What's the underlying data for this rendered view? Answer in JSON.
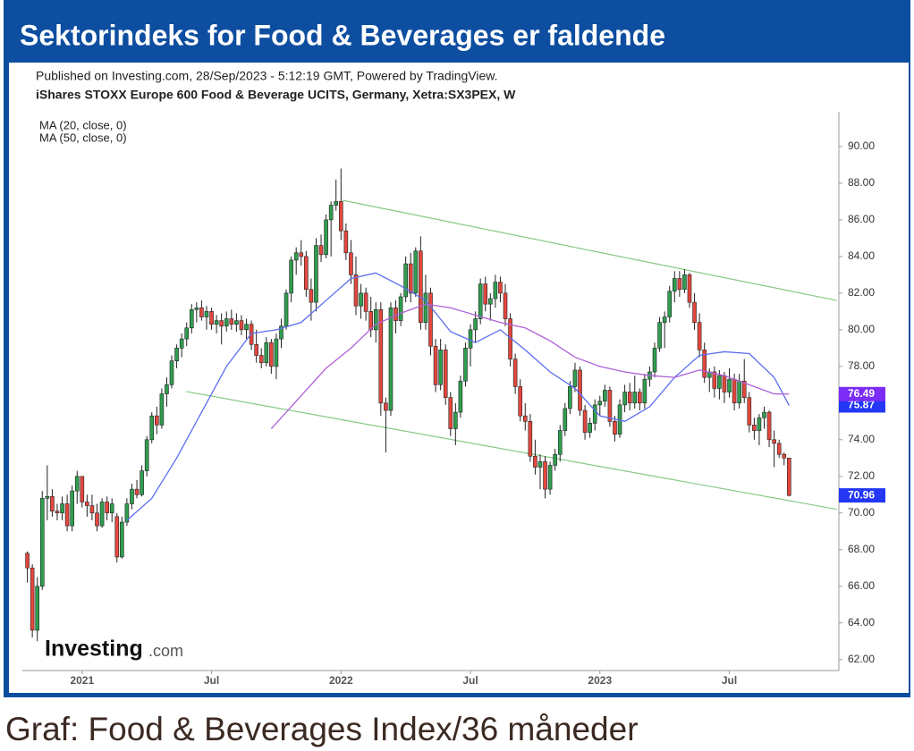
{
  "header": {
    "title": "Sektorindeks for Food & Beverages er faldende"
  },
  "caption": "Graf: Food & Beverages Index/36 måneder",
  "watermark": {
    "brand": "Investing",
    "suffix": ".com"
  },
  "chart_data": {
    "type": "candlestick",
    "subtitle": "Published on Investing.com, 28/Sep/2023 - 5:12:19 GMT, Powered by TradingView.",
    "title": "iShares STOXX Europe 600 Food & Beverage UCITS, Germany, Xetra:SX3PEX, W",
    "x": [
      0,
      1,
      2,
      3,
      4,
      5,
      6,
      7,
      8,
      9,
      10,
      11,
      12,
      13,
      14,
      15,
      16,
      17,
      18,
      19,
      20,
      21,
      22,
      23,
      24,
      25,
      26,
      27,
      28,
      29,
      30,
      31,
      32,
      33,
      34,
      35,
      36,
      37,
      38,
      39,
      40,
      41,
      42,
      43,
      44,
      45,
      46,
      47,
      48,
      49,
      50,
      51,
      52,
      53,
      54,
      55,
      56,
      57,
      58,
      59,
      60,
      61,
      62,
      63,
      64,
      65,
      66,
      67,
      68,
      69,
      70,
      71,
      72,
      73,
      74,
      75,
      76,
      77,
      78,
      79,
      80,
      81,
      82,
      83,
      84,
      85,
      86,
      87,
      88,
      89,
      90,
      91,
      92,
      93,
      94,
      95,
      96,
      97,
      98,
      99,
      100,
      101,
      102,
      103,
      104,
      105,
      106,
      107,
      108,
      109,
      110,
      111,
      112,
      113,
      114,
      115,
      116,
      117,
      118,
      119,
      120,
      121,
      122,
      123,
      124,
      125,
      126,
      127,
      128,
      129,
      130,
      131,
      132,
      133,
      134,
      135,
      136,
      137,
      138,
      139,
      140,
      141,
      142,
      143,
      144,
      145,
      146,
      147,
      148,
      149,
      150,
      151,
      152,
      153
    ],
    "open": [
      67.8,
      67.0,
      63.6,
      66.0,
      70.8,
      70.9,
      70.1,
      70.0,
      70.5,
      69.3,
      71.2,
      72.0,
      70.6,
      70.4,
      70.0,
      69.3,
      70.6,
      70.0,
      69.8,
      67.6,
      69.5,
      70.5,
      71.3,
      71.0,
      72.3,
      74.0,
      75.3,
      74.8,
      76.5,
      77.0,
      78.3,
      79.0,
      79.5,
      80.1,
      81.1,
      81.2,
      80.7,
      81.0,
      80.3,
      80.5,
      80.2,
      80.6,
      80.3,
      80.5,
      80.0,
      80.3,
      79.2,
      78.6,
      78.2,
      79.3,
      78.0,
      79.5,
      80.2,
      82.0,
      83.8,
      84.2,
      84.0,
      82.2,
      81.5,
      84.6,
      84.1,
      86.0,
      86.8,
      87.0,
      85.4,
      84.2,
      83.0,
      81.3,
      82.0,
      81.0,
      80.0,
      81.1,
      76.0,
      75.6,
      81.2,
      80.5,
      81.8,
      83.6,
      82.0,
      84.3,
      80.4,
      82.0,
      79.1,
      77.0,
      78.9,
      76.3,
      74.6,
      75.5,
      77.2,
      79.0,
      80.0,
      80.6,
      82.5,
      81.4,
      81.7,
      82.6,
      82.0,
      80.6,
      78.4,
      76.9,
      75.3,
      75.0,
      73.1,
      72.5,
      72.8,
      71.3,
      72.6,
      73.2,
      74.5,
      75.7,
      76.9,
      77.8,
      75.6,
      74.4,
      74.9,
      75.9,
      76.1,
      76.7,
      75.0,
      74.3,
      75.9,
      76.6,
      76.0,
      76.6,
      76.0,
      77.3,
      77.7,
      79.0,
      80.4,
      80.7,
      82.1,
      82.8,
      82.2,
      83.0,
      81.5,
      80.4,
      78.9,
      77.4,
      77.7,
      76.8,
      77.5,
      76.6,
      77.3,
      76.0,
      77.2,
      76.3,
      74.8,
      74.5,
      75.2,
      75.5,
      74.0,
      73.8,
      73.2,
      73.0
    ],
    "high": [
      67.9,
      67.2,
      66.5,
      71.2,
      72.6,
      71.3,
      70.5,
      70.9,
      71.0,
      71.5,
      72.3,
      72.0,
      71.0,
      71.0,
      70.5,
      70.8,
      70.9,
      70.8,
      70.0,
      69.8,
      70.8,
      71.6,
      71.8,
      72.6,
      74.2,
      75.5,
      75.8,
      76.8,
      77.4,
      78.6,
      79.2,
      79.8,
      80.4,
      81.4,
      81.5,
      81.6,
      81.3,
      81.2,
      80.8,
      80.9,
      81.0,
      81.1,
      80.9,
      80.8,
      80.6,
      80.5,
      80.0,
      79.0,
      79.6,
      79.5,
      79.8,
      80.6,
      82.2,
      84.0,
      84.5,
      84.9,
      84.3,
      82.8,
      85.0,
      85.2,
      86.3,
      87.0,
      88.2,
      88.8,
      85.8,
      84.9,
      84.0,
      82.5,
      82.3,
      81.8,
      81.5,
      81.5,
      76.3,
      81.5,
      81.6,
      82.0,
      84.0,
      84.2,
      84.5,
      85.1,
      83.0,
      82.3,
      79.5,
      79.5,
      79.2,
      76.6,
      76.0,
      77.5,
      79.3,
      80.3,
      81.0,
      82.8,
      82.9,
      82.0,
      83.0,
      82.9,
      82.5,
      80.9,
      78.7,
      77.3,
      76.0,
      75.4,
      74.0,
      73.2,
      73.1,
      72.8,
      73.5,
      74.8,
      76.0,
      77.2,
      78.2,
      78.0,
      75.9,
      75.2,
      76.2,
      76.4,
      77.0,
      76.9,
      75.3,
      76.2,
      77.0,
      77.1,
      77.5,
      76.8,
      77.6,
      78.0,
      79.3,
      80.7,
      81.0,
      82.4,
      83.2,
      83.2,
      83.3,
      83.1,
      82.0,
      80.9,
      79.3,
      77.9,
      78.0,
      77.8,
      77.7,
      77.9,
      77.6,
      77.6,
      78.4,
      76.6,
      75.2,
      75.4,
      75.8,
      75.6,
      74.5,
      74.0,
      73.3,
      73.0
    ],
    "low": [
      66.2,
      63.2,
      63.0,
      65.8,
      69.6,
      69.8,
      69.6,
      69.6,
      69.0,
      69.0,
      70.5,
      70.3,
      69.8,
      69.6,
      69.0,
      69.2,
      69.6,
      69.5,
      67.3,
      67.5,
      69.3,
      70.2,
      70.8,
      70.9,
      72.0,
      73.8,
      74.3,
      74.6,
      75.8,
      76.8,
      77.9,
      78.5,
      79.1,
      79.8,
      80.4,
      80.5,
      80.0,
      80.0,
      79.8,
      79.2,
      79.9,
      80.0,
      79.9,
      79.7,
      79.5,
      78.9,
      78.2,
      77.9,
      78.0,
      77.6,
      77.3,
      79.0,
      80.0,
      81.5,
      83.0,
      83.5,
      81.8,
      80.5,
      81.0,
      83.7,
      83.9,
      84.0,
      86.5,
      84.9,
      83.8,
      82.5,
      80.8,
      80.6,
      80.5,
      79.6,
      79.3,
      75.3,
      73.3,
      75.3,
      79.8,
      80.2,
      81.5,
      81.5,
      81.8,
      80.0,
      80.0,
      78.6,
      76.6,
      76.7,
      75.9,
      74.2,
      73.7,
      75.2,
      76.9,
      78.0,
      79.3,
      80.3,
      81.0,
      80.5,
      81.2,
      81.5,
      80.2,
      78.0,
      76.5,
      75.0,
      74.5,
      72.8,
      72.1,
      71.3,
      70.8,
      71.0,
      72.3,
      72.8,
      74.2,
      75.4,
      76.6,
      75.3,
      74.0,
      74.1,
      74.5,
      75.3,
      75.8,
      74.7,
      73.9,
      74.1,
      75.5,
      75.6,
      75.7,
      75.6,
      75.7,
      76.9,
      77.4,
      78.8,
      79.0,
      80.4,
      81.5,
      81.8,
      82.0,
      81.2,
      80.0,
      78.5,
      77.1,
      76.6,
      76.3,
      76.2,
      76.0,
      76.3,
      75.6,
      75.7,
      76.0,
      74.4,
      74.0,
      73.7,
      74.6,
      73.6,
      72.5,
      73.0,
      72.6,
      70.9
    ],
    "close": [
      67.0,
      63.6,
      66.0,
      70.8,
      70.9,
      70.1,
      70.0,
      70.5,
      69.3,
      71.2,
      72.0,
      70.6,
      70.4,
      70.0,
      69.3,
      70.6,
      70.0,
      70.5,
      67.6,
      69.5,
      70.5,
      71.3,
      71.0,
      72.3,
      74.0,
      75.3,
      74.8,
      76.5,
      77.0,
      78.3,
      79.0,
      79.5,
      80.1,
      81.1,
      81.2,
      80.7,
      81.0,
      80.3,
      80.5,
      80.2,
      80.6,
      80.3,
      80.5,
      80.0,
      80.3,
      79.2,
      78.6,
      78.2,
      79.3,
      78.0,
      79.5,
      80.2,
      82.0,
      83.8,
      84.2,
      84.0,
      82.2,
      81.5,
      84.6,
      84.1,
      86.0,
      86.8,
      87.0,
      85.4,
      84.2,
      83.0,
      81.3,
      82.0,
      81.0,
      80.0,
      81.1,
      76.0,
      75.6,
      81.2,
      80.5,
      81.8,
      83.6,
      82.0,
      84.3,
      80.4,
      82.0,
      79.1,
      77.0,
      78.9,
      76.3,
      74.6,
      75.5,
      77.2,
      79.0,
      80.0,
      80.6,
      82.5,
      81.4,
      81.7,
      82.6,
      82.0,
      80.6,
      78.4,
      76.9,
      75.3,
      75.0,
      73.1,
      72.5,
      72.8,
      71.3,
      72.6,
      73.2,
      74.5,
      75.7,
      76.9,
      77.8,
      75.6,
      74.4,
      74.9,
      75.9,
      76.1,
      76.7,
      75.0,
      74.3,
      75.9,
      76.6,
      76.0,
      76.6,
      76.0,
      77.3,
      77.7,
      79.0,
      80.4,
      80.7,
      82.1,
      82.8,
      82.2,
      83.0,
      81.5,
      80.4,
      78.9,
      77.4,
      77.7,
      76.8,
      77.5,
      76.6,
      77.3,
      76.0,
      77.2,
      76.3,
      74.8,
      74.5,
      75.2,
      75.5,
      74.0,
      73.8,
      73.2,
      73.0,
      70.96
    ],
    "up_color": "#2f9e4f",
    "down_color": "#e4473d",
    "price_label_color": "#2337f5",
    "ma": [
      {
        "name": "MA (20, close, 0)",
        "color": "#5b6df0",
        "label_color": "#2337f5",
        "x": [
          20,
          25,
          30,
          35,
          40,
          45,
          50,
          55,
          60,
          65,
          70,
          75,
          80,
          85,
          90,
          95,
          100,
          105,
          110,
          115,
          120,
          125,
          130,
          135,
          140,
          145,
          150,
          153
        ],
        "values": [
          69.6,
          70.8,
          73.0,
          75.5,
          78.0,
          79.8,
          80.0,
          80.4,
          81.6,
          82.8,
          83.1,
          82.4,
          81.6,
          79.9,
          79.3,
          80.0,
          78.9,
          77.7,
          76.8,
          75.3,
          75.0,
          75.8,
          77.4,
          78.6,
          78.8,
          78.7,
          77.4,
          75.87
        ]
      },
      {
        "name": "MA (50, close, 0)",
        "color": "#b05fd8",
        "label_color": "#7b2cf6",
        "x": [
          49,
          55,
          60,
          65,
          70,
          75,
          80,
          85,
          90,
          95,
          100,
          105,
          110,
          115,
          120,
          125,
          130,
          135,
          140,
          145,
          150,
          153
        ],
        "values": [
          74.6,
          76.4,
          77.9,
          79.0,
          80.3,
          80.9,
          81.4,
          81.2,
          80.8,
          80.4,
          80.1,
          79.4,
          78.5,
          78.0,
          77.7,
          77.5,
          77.4,
          77.8,
          77.5,
          77.0,
          76.5,
          76.49
        ]
      }
    ],
    "trendlines": [
      {
        "color": "#86c986",
        "x": [
          63.3,
          162.6
        ],
        "values": [
          87.07,
          81.6
        ]
      },
      {
        "color": "#86c986",
        "x": [
          31.9,
          162.6
        ],
        "values": [
          76.63,
          70.2
        ]
      }
    ],
    "xlim": [
      -1,
      163
    ],
    "xticks": [
      {
        "value": 11,
        "label": "2021"
      },
      {
        "value": 37,
        "label": "Jul"
      },
      {
        "value": 63,
        "label": "2022"
      },
      {
        "value": 89,
        "label": "Jul"
      },
      {
        "value": 115,
        "label": "2023"
      },
      {
        "value": 141,
        "label": "Jul"
      }
    ],
    "ylim": [
      61.4,
      91.9
    ],
    "yticks": [
      {
        "value": 62,
        "label": "62.00"
      },
      {
        "value": 64,
        "label": "64.00"
      },
      {
        "value": 66,
        "label": "66.00"
      },
      {
        "value": 68,
        "label": "68.00"
      },
      {
        "value": 70,
        "label": "70.00"
      },
      {
        "value": 72,
        "label": "72.00"
      },
      {
        "value": 74,
        "label": "74.00"
      },
      {
        "value": 76,
        "label": "76.00"
      },
      {
        "value": 78,
        "label": "78.00"
      },
      {
        "value": 80,
        "label": "80.00"
      },
      {
        "value": 82,
        "label": "82.00"
      },
      {
        "value": 84,
        "label": "84.00"
      },
      {
        "value": 86,
        "label": "86.00"
      },
      {
        "value": 88,
        "label": "88.00"
      },
      {
        "value": 90,
        "label": "90.00"
      }
    ],
    "grid": false
  }
}
